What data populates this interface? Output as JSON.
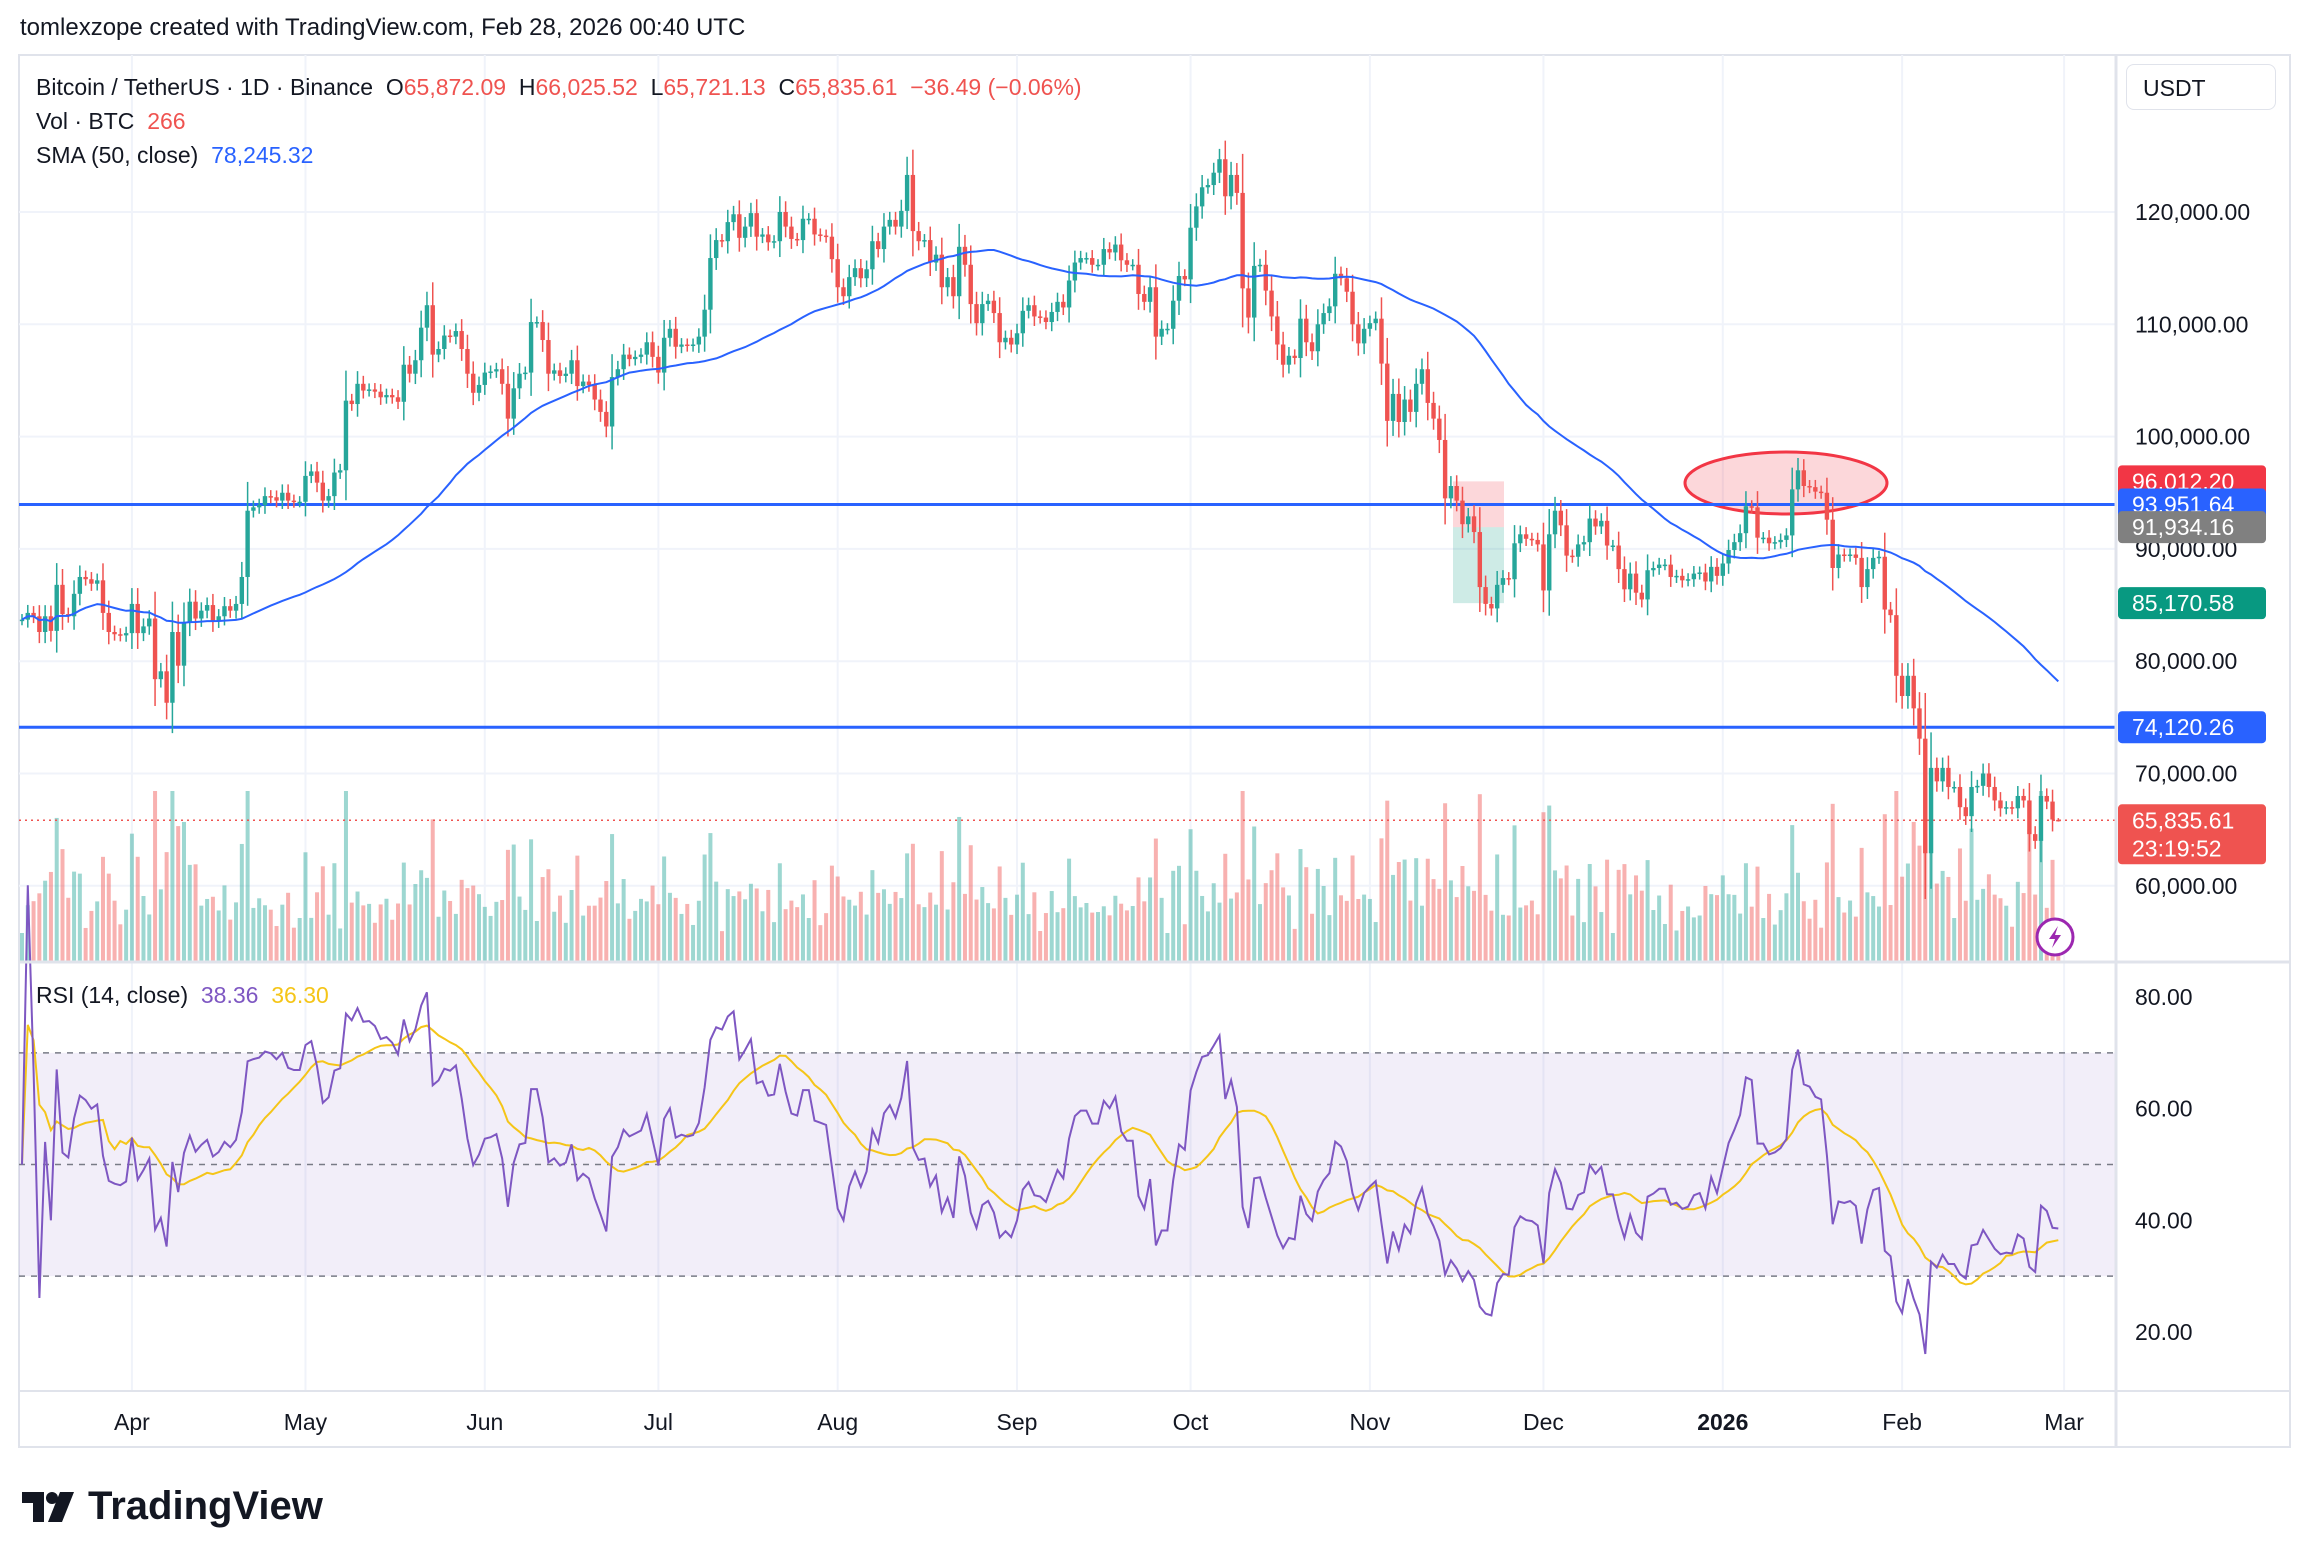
{
  "header": {
    "attribution": "tomlexzope created with TradingView.com, Feb 28, 2026 00:40 UTC"
  },
  "legend": {
    "symbol": "Bitcoin / TetherUS · 1D · Binance",
    "o_label": "O",
    "o": "65,872.09",
    "h_label": "H",
    "h": "66,025.52",
    "l_label": "L",
    "l": "65,721.13",
    "c_label": "C",
    "c": "65,835.61",
    "change": "−36.49 (−0.06%)",
    "vol_label": "Vol · BTC",
    "vol": "266",
    "sma_label": "SMA (50, close)",
    "sma": "78,245.32"
  },
  "rsi_legend": {
    "label": "RSI (14, close)",
    "rsi": "38.36",
    "rsi_ma": "36.30"
  },
  "price_axis": {
    "unit": "USDT",
    "ticks": [
      {
        "value": 120000,
        "label": "120,000.00"
      },
      {
        "value": 110000,
        "label": "110,000.00"
      },
      {
        "value": 100000,
        "label": "100,000.00"
      },
      {
        "value": 90000,
        "label": "90,000.00"
      },
      {
        "value": 80000,
        "label": "80,000.00"
      },
      {
        "value": 70000,
        "label": "70,000.00"
      },
      {
        "value": 60000,
        "label": "60,000.00"
      }
    ],
    "markers": [
      {
        "value": 96012.2,
        "label": "96,012.20",
        "color": "#f23645"
      },
      {
        "value": 93951.64,
        "label": "93,951.64",
        "color": "#2962ff"
      },
      {
        "value": 91934.16,
        "label": "91,934.16",
        "color": "#808080"
      },
      {
        "value": 85170.58,
        "label": "85,170.58",
        "color": "#089981"
      },
      {
        "value": 74120.26,
        "label": "74,120.26",
        "color": "#2962ff"
      }
    ],
    "last_price": {
      "value": 65835.61,
      "label": "65,835.61",
      "countdown": "23:19:52",
      "color": "#ef5350"
    }
  },
  "rsi_axis": {
    "ticks": [
      {
        "value": 80,
        "label": "80.00"
      },
      {
        "value": 60,
        "label": "60.00"
      },
      {
        "value": 40,
        "label": "40.00"
      },
      {
        "value": 20,
        "label": "20.00"
      }
    ],
    "upper_band": 70,
    "middle_band": 50,
    "lower_band": 30
  },
  "time_axis": {
    "labels": [
      "Apr",
      "May",
      "Jun",
      "Jul",
      "Aug",
      "Sep",
      "Oct",
      "Nov",
      "Dec",
      "2026",
      "Feb",
      "Mar"
    ]
  },
  "drawings": {
    "horizontal_lines": [
      93951.64,
      74120.26
    ],
    "position_tool": {
      "entry": 91934.16,
      "stop": 96012.2,
      "target": 85170.58
    }
  },
  "colors": {
    "up": "#26a69a",
    "down": "#ef5350",
    "sma": "#2962ff",
    "rsi": "#7e57c2",
    "rsi_ma": "#f5c518",
    "hline": "#2962ff"
  },
  "branding": {
    "logo": "TradingView"
  },
  "chart_data": {
    "type": "candlestick",
    "symbol": "BTCUSDT",
    "interval": "1D",
    "indicators": [
      "Volume",
      "SMA 50",
      "RSI 14"
    ],
    "closes": [
      83700,
      84300,
      84000,
      82600,
      84000,
      82700,
      86800,
      84200,
      84000,
      86000,
      87500,
      87300,
      86900,
      87200,
      84300,
      82600,
      82400,
      82300,
      82500,
      85100,
      82500,
      83100,
      83800,
      78400,
      79100,
      76300,
      82600,
      79600,
      83400,
      85300,
      83800,
      84500,
      85000,
      83600,
      84000,
      84900,
      84500,
      85100,
      87500,
      93400,
      93700,
      93900,
      94700,
      94600,
      94300,
      95000,
      94300,
      94200,
      94200,
      96500,
      96900,
      95900,
      94300,
      94700,
      96800,
      97000,
      103200,
      102900,
      104700,
      104100,
      104200,
      104000,
      103500,
      103700,
      103500,
      103100,
      106400,
      105600,
      106800,
      109700,
      111700,
      107300,
      107800,
      109000,
      108900,
      109400,
      107800,
      105600,
      103900,
      104600,
      105700,
      105800,
      106000,
      104700,
      101600,
      104300,
      105600,
      105700,
      110200,
      110200,
      108600,
      105600,
      105900,
      105400,
      105600,
      106800,
      104500,
      104900,
      104600,
      103300,
      102200,
      100900,
      105300,
      106000,
      107300,
      106900,
      107100,
      107300,
      108400,
      107100,
      105700,
      108800,
      109600,
      108000,
      108200,
      108100,
      108200,
      108900,
      111300,
      115900,
      117500,
      117400,
      119100,
      119800,
      117700,
      118700,
      119900,
      117800,
      118000,
      117300,
      117400,
      120000,
      118700,
      117600,
      117500,
      119400,
      119400,
      118000,
      117900,
      117800,
      115800,
      113300,
      112500,
      114200,
      115000,
      114100,
      114900,
      117400,
      116700,
      118700,
      119300,
      118700,
      120100,
      123300,
      118300,
      117400,
      117500,
      115500,
      116200,
      113300,
      114200,
      112500,
      116900,
      115300,
      111800,
      110100,
      111800,
      112100,
      111000,
      108400,
      108800,
      108200,
      109200,
      111200,
      111700,
      110700,
      110600,
      110200,
      111100,
      112000,
      111500,
      113900,
      115500,
      115900,
      115900,
      115300,
      115300,
      116700,
      116400,
      117100,
      115700,
      115300,
      115300,
      112700,
      112000,
      113300,
      108900,
      109600,
      109600,
      112100,
      114300,
      114000,
      118600,
      120500,
      122200,
      122400,
      123500,
      124700,
      121400,
      123300,
      121700,
      113200,
      110600,
      115200,
      115300,
      113000,
      110700,
      108200,
      106400,
      107200,
      107000,
      110500,
      108400,
      107600,
      110000,
      111000,
      111600,
      114500,
      114100,
      112900,
      110000,
      108300,
      109600,
      110100,
      110500,
      106500,
      101400,
      103800,
      101300,
      103300,
      102200,
      104700,
      106000,
      103000,
      101600,
      99700,
      94500,
      95600,
      94300,
      92200,
      92900,
      91500,
      86600,
      85100,
      84700,
      86800,
      87400,
      87300,
      90500,
      91300,
      90900,
      90800,
      90400,
      86300,
      91300,
      93400,
      92100,
      89400,
      89300,
      90400,
      90600,
      92700,
      92000,
      92500,
      90300,
      90300,
      88200,
      86400,
      87800,
      86100,
      85500,
      88100,
      88300,
      88600,
      88600,
      87500,
      87600,
      87200,
      87300,
      87800,
      87900,
      87100,
      88400,
      87600,
      88700,
      89900,
      90600,
      91400,
      93800,
      93700,
      91000,
      91000,
      90500,
      90600,
      90800,
      91200,
      95300,
      97000,
      95600,
      95500,
      95100,
      95000,
      92600,
      88300,
      89500,
      89400,
      89500,
      89200,
      86600,
      88200,
      89200,
      89300,
      84600,
      84100,
      78700,
      76900,
      78700,
      75800,
      73100,
      62900,
      70500,
      69300,
      70500,
      68800,
      68800,
      67000,
      66200,
      68800,
      68900,
      70000,
      68800,
      67600,
      66900,
      67000,
      66900,
      68000,
      67600,
      64600,
      64000,
      68000,
      67500,
      65900,
      65835.61
    ],
    "last_bar": {
      "open": 65872.09,
      "high": 66025.52,
      "low": 65721.13,
      "close": 65835.61,
      "volume": 266
    },
    "price_range": [
      55000,
      128000
    ],
    "rsi_range": [
      10,
      88
    ],
    "grid": true
  }
}
